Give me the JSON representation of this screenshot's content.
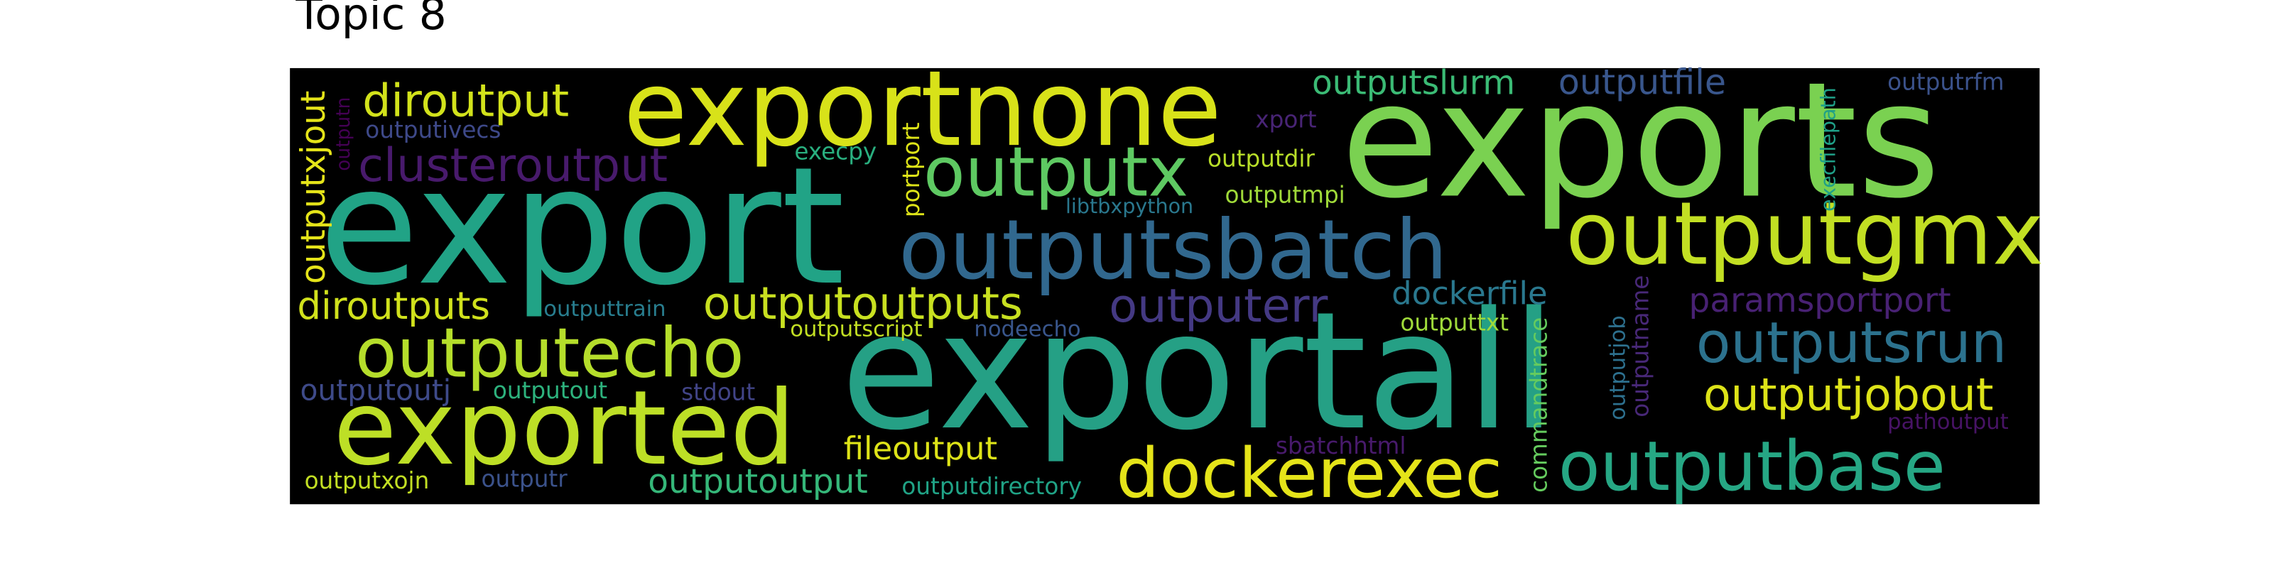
{
  "title": "Topic 8",
  "words": [
    {
      "text": "exports",
      "color": "#7ad151"
    },
    {
      "text": "export",
      "color": "#21a386"
    },
    {
      "text": "exportall",
      "color": "#25a085"
    },
    {
      "text": "exportnone",
      "color": "#d8e219"
    },
    {
      "text": "outputsbatch",
      "color": "#31688e"
    },
    {
      "text": "outputgmx",
      "color": "#c2df23"
    },
    {
      "text": "exported",
      "color": "#bddf26"
    },
    {
      "text": "outputecho",
      "color": "#b5de2b"
    },
    {
      "text": "dockerexec",
      "color": "#e5e419"
    },
    {
      "text": "outputbase",
      "color": "#26a784"
    },
    {
      "text": "outputsrun",
      "color": "#2c728e"
    },
    {
      "text": "outputjobout",
      "color": "#dde318"
    },
    {
      "text": "outputx",
      "color": "#5ec962"
    },
    {
      "text": "clusteroutput",
      "color": "#481a6c"
    },
    {
      "text": "diroutput",
      "color": "#d2e21b"
    },
    {
      "text": "outputoutputs",
      "color": "#c8e020"
    },
    {
      "text": "diroutputs",
      "color": "#d0e11c"
    },
    {
      "text": "outputerr",
      "color": "#443983"
    },
    {
      "text": "outputslurm",
      "color": "#3bbb75"
    },
    {
      "text": "outputfile",
      "color": "#39568c"
    },
    {
      "text": "dockerfile",
      "color": "#2a788e"
    },
    {
      "text": "paramsportport",
      "color": "#482173"
    },
    {
      "text": "fileoutput",
      "color": "#dde318"
    },
    {
      "text": "outputoutput",
      "color": "#35b779"
    },
    {
      "text": "outputxjout",
      "color": "#e5e419"
    },
    {
      "text": "outputn",
      "color": "#440154"
    },
    {
      "text": "outputivecs",
      "color": "#3e4989"
    },
    {
      "text": "execpy",
      "color": "#29af7f"
    },
    {
      "text": "portport",
      "color": "#dde318"
    },
    {
      "text": "outputdir",
      "color": "#b8de29"
    },
    {
      "text": "xport",
      "color": "#482475"
    },
    {
      "text": "outputmpi",
      "color": "#a0da39"
    },
    {
      "text": "libtbxpython",
      "color": "#2a788e"
    },
    {
      "text": "execfilepath",
      "color": "#1fa088"
    },
    {
      "text": "outputrfm",
      "color": "#3b528b"
    },
    {
      "text": "outputtrain",
      "color": "#287d8e"
    },
    {
      "text": "outputscript",
      "color": "#c2df23"
    },
    {
      "text": "nodeecho",
      "color": "#39568c"
    },
    {
      "text": "outputtxt",
      "color": "#9fda3a"
    },
    {
      "text": "outputoutj",
      "color": "#3e4a89"
    },
    {
      "text": "outputout",
      "color": "#2db27d"
    },
    {
      "text": "stdout",
      "color": "#414487"
    },
    {
      "text": "commandtrace",
      "color": "#65cb5e"
    },
    {
      "text": "outputjob",
      "color": "#2d708e"
    },
    {
      "text": "outputname",
      "color": "#482878"
    },
    {
      "text": "sbatchhtml",
      "color": "#481a6c"
    },
    {
      "text": "pathoutput",
      "color": "#471365"
    },
    {
      "text": "outputxojn",
      "color": "#c2df23"
    },
    {
      "text": "outputr",
      "color": "#3b528b"
    },
    {
      "text": "outputdirectory",
      "color": "#20a386"
    }
  ]
}
